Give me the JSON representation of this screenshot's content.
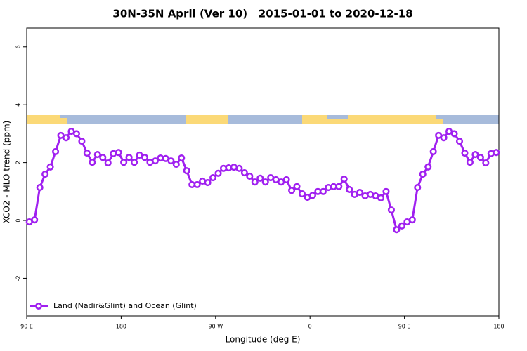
{
  "chart_data": {
    "type": "line",
    "title": "30N-35N April (Ver 10)   2015-01-01 to 2020-12-18",
    "xlabel": "Longitude (deg E)",
    "ylabel": "XCO2 - MLO trend (ppm)",
    "x": [
      92.5,
      97.5,
      102.5,
      107.5,
      112.5,
      117.5,
      122.5,
      127.5,
      132.5,
      137.5,
      142.5,
      147.5,
      152.5,
      157.5,
      162.5,
      167.5,
      172.5,
      177.5,
      182.5,
      187.5,
      192.5,
      197.5,
      202.5,
      207.5,
      212.5,
      217.5,
      222.5,
      227.5,
      232.5,
      237.5,
      242.5,
      247.5,
      252.5,
      257.5,
      262.5,
      267.5,
      272.5,
      277.5,
      282.5,
      287.5,
      292.5,
      297.5,
      302.5,
      307.5,
      312.5,
      317.5,
      322.5,
      327.5,
      332.5,
      337.5,
      342.5,
      347.5,
      352.5,
      357.5,
      362.5,
      367.5,
      372.5,
      377.5,
      382.5,
      387.5,
      392.5,
      397.5,
      402.5,
      407.5,
      412.5,
      417.5,
      422.5,
      427.5,
      432.5,
      437.5,
      442.5,
      447.5,
      452.5,
      457.5,
      462.5,
      467.5,
      472.5,
      477.5,
      482.5,
      487.5,
      492.5,
      497.5,
      502.5,
      507.5,
      512.5,
      517.5,
      522.5,
      527.5,
      532.5,
      537.5
    ],
    "series": [
      {
        "name": "Land (Nadir&Glint) and Ocean (Glint)",
        "color": "#a020f0",
        "values": [
          -0.05,
          0.02,
          1.14,
          1.6,
          1.85,
          2.38,
          2.94,
          2.86,
          3.08,
          3.0,
          2.74,
          2.33,
          2.01,
          2.28,
          2.18,
          1.99,
          2.31,
          2.35,
          2.01,
          2.18,
          2.01,
          2.26,
          2.18,
          2.01,
          2.06,
          2.16,
          2.14,
          2.06,
          1.94,
          2.16,
          1.72,
          1.24,
          1.24,
          1.36,
          1.31,
          1.48,
          1.63,
          1.8,
          1.82,
          1.84,
          1.8,
          1.65,
          1.53,
          1.33,
          1.46,
          1.33,
          1.48,
          1.41,
          1.33,
          1.41,
          1.04,
          1.17,
          0.92,
          0.8,
          0.87,
          1.0,
          1.0,
          1.14,
          1.17,
          1.17,
          1.43,
          1.07,
          0.9,
          0.97,
          0.85,
          0.9,
          0.85,
          0.78,
          1.0,
          0.36,
          -0.32,
          -0.19,
          -0.05,
          0.02,
          1.14,
          1.6,
          1.85,
          2.38,
          2.94,
          2.86,
          3.08,
          3.0,
          2.74,
          2.33,
          2.01,
          2.28,
          2.18,
          1.99,
          2.31,
          2.35
        ]
      }
    ],
    "xlim": [
      90,
      540
    ],
    "xticks": [
      {
        "value": 90,
        "label": "90 E"
      },
      180,
      {
        "value": 270,
        "label": "90 W"
      },
      {
        "value": 360,
        "label": "0"
      },
      {
        "value": 450,
        "label": "90 E"
      },
      {
        "value": 540,
        "label": "180"
      }
    ],
    "ylim": [
      -3.3,
      6.65
    ],
    "yticks": [
      -2,
      0,
      2,
      4,
      6
    ],
    "legend": "bottom-left"
  }
}
